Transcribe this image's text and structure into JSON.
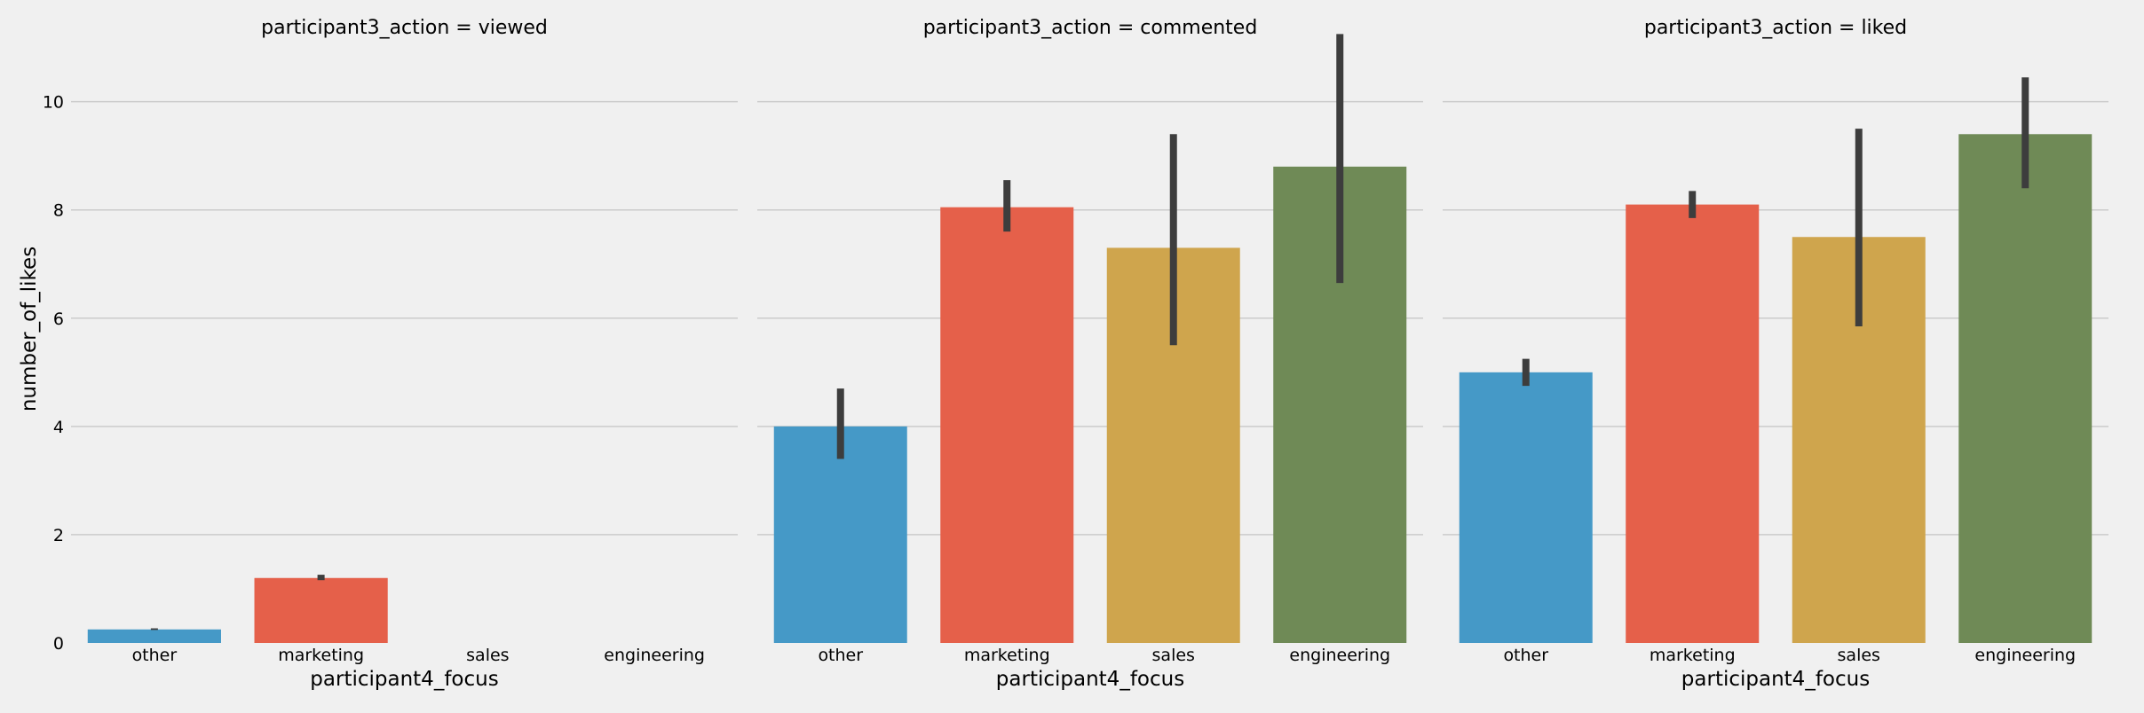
{
  "chart_data": {
    "type": "bar",
    "ylabel": "number_of_likes",
    "ylim": [
      0,
      11.6
    ],
    "yticks": [
      "0",
      "2",
      "4",
      "6",
      "8",
      "10"
    ],
    "grid": true,
    "categories": [
      "other",
      "marketing",
      "sales",
      "engineering"
    ],
    "colors": [
      "#4599c7",
      "#e5604a",
      "#cfa54d",
      "#6f8a56"
    ],
    "errorbar_color": "#3d3d3d",
    "panels": [
      {
        "title": "participant3_action = viewed",
        "xlabel": "participant4_focus",
        "values": [
          0.25,
          1.2,
          null,
          null
        ],
        "ci": [
          [
            0.24,
            0.27
          ],
          [
            1.16,
            1.26
          ],
          null,
          null
        ]
      },
      {
        "title": "participant3_action = commented",
        "xlabel": "participant4_focus",
        "values": [
          4.0,
          8.05,
          7.3,
          8.8
        ],
        "ci": [
          [
            3.4,
            4.7
          ],
          [
            7.6,
            8.55
          ],
          [
            5.5,
            9.4
          ],
          [
            6.65,
            11.25
          ]
        ]
      },
      {
        "title": "participant3_action = liked",
        "xlabel": "participant4_focus",
        "values": [
          5.0,
          8.1,
          7.5,
          9.4
        ],
        "ci": [
          [
            4.75,
            5.25
          ],
          [
            7.85,
            8.35
          ],
          [
            5.85,
            9.5
          ],
          [
            8.4,
            10.45
          ]
        ]
      }
    ]
  }
}
